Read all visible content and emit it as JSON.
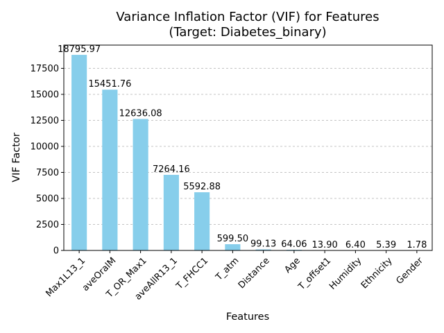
{
  "chart_data": {
    "type": "bar",
    "title_line1": "Variance Inflation Factor (VIF) for Features",
    "title_line2": "(Target: Diabetes_binary)",
    "xlabel": "Features",
    "ylabel": "VIF Factor",
    "categories": [
      "Max1L13_1",
      "aveOralM",
      "T_OR_Max1",
      "aveAllR13_1",
      "T_FHCC1",
      "T_atm",
      "Distance",
      "Age",
      "T_offset1",
      "Humidity",
      "Ethnicity",
      "Gender"
    ],
    "values": [
      18795.97,
      15451.76,
      12636.08,
      7264.16,
      5592.88,
      599.5,
      99.13,
      64.06,
      13.9,
      6.4,
      5.39,
      1.78
    ],
    "value_labels": [
      "18795.97",
      "15451.76",
      "12636.08",
      "7264.16",
      "5592.88",
      "599.50",
      "99.13",
      "64.06",
      "13.90",
      "6.40",
      "5.39",
      "1.78"
    ],
    "ylim": [
      0,
      19734
    ],
    "yticks": [
      0,
      2500,
      5000,
      7500,
      10000,
      12500,
      15000,
      17500
    ],
    "ytick_labels": [
      "0",
      "2500",
      "5000",
      "7500",
      "10000",
      "12500",
      "15000",
      "17500"
    ],
    "grid": "y-dashed",
    "bar_color": "#87ceeb",
    "grid_color": "#b0b0b0"
  }
}
